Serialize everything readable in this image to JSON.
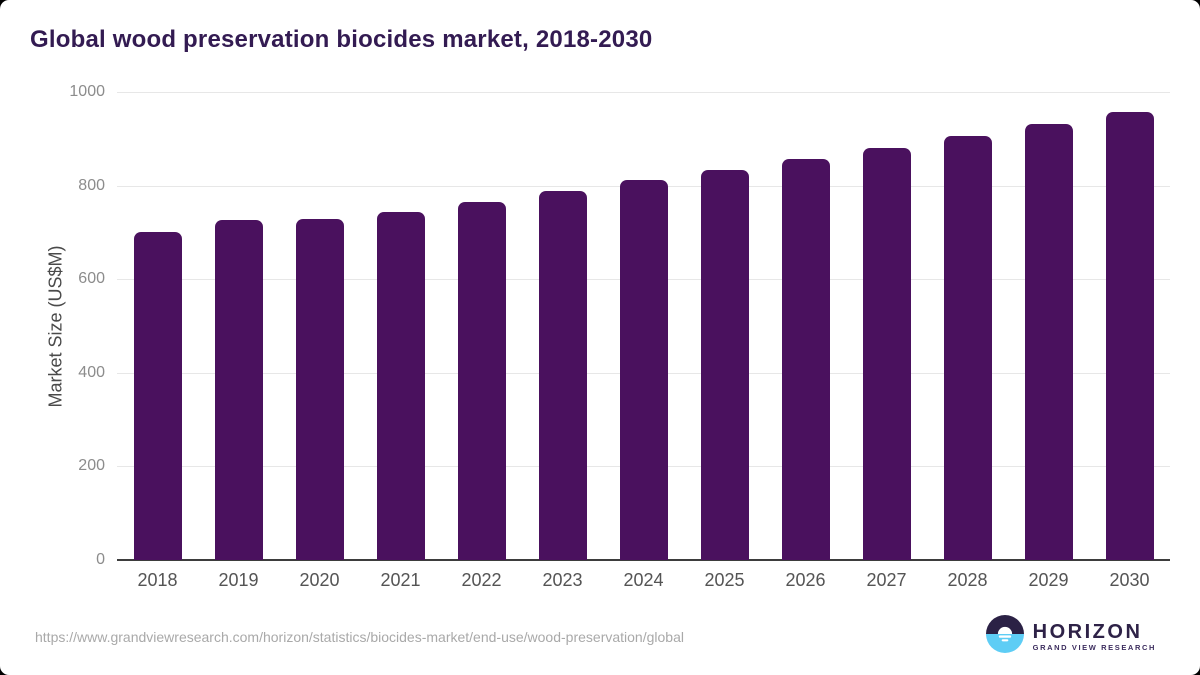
{
  "title": "Global wood preservation biocides market, 2018-2030",
  "source_url": "https://www.grandviewresearch.com/horizon/statistics/biocides-market/end-use/wood-preservation/global",
  "logo": {
    "name": "HORIZON",
    "subtitle": "GRAND VIEW RESEARCH",
    "icon": "horizon-sun-over-water-icon",
    "icon_colors": {
      "top": "#2b2145",
      "bottom": "#5ecdf5",
      "sun": "#ffffff"
    }
  },
  "colors": {
    "bar": "#4a115e",
    "title_text": "#331b52",
    "gridline": "#e7e7e7",
    "axis_line": "#3d3d3d",
    "y_tick_text": "#8c8c8c",
    "x_tick_text": "#545454",
    "url_text": "#a9a9a9"
  },
  "chart_data": {
    "type": "bar",
    "title": "Global wood preservation biocides market, 2018-2030",
    "categories": [
      "2018",
      "2019",
      "2020",
      "2021",
      "2022",
      "2023",
      "2024",
      "2025",
      "2026",
      "2027",
      "2028",
      "2029",
      "2030"
    ],
    "values": [
      700,
      726,
      729,
      743,
      764,
      788,
      811,
      834,
      857,
      880,
      905,
      931,
      957
    ],
    "xlabel": "",
    "ylabel": "Market Size (US$M)",
    "ylim": [
      0,
      1000
    ],
    "yticks": [
      0,
      200,
      400,
      600,
      800,
      1000
    ],
    "grid": true,
    "legend": false,
    "bar_color": "#4a115e"
  }
}
